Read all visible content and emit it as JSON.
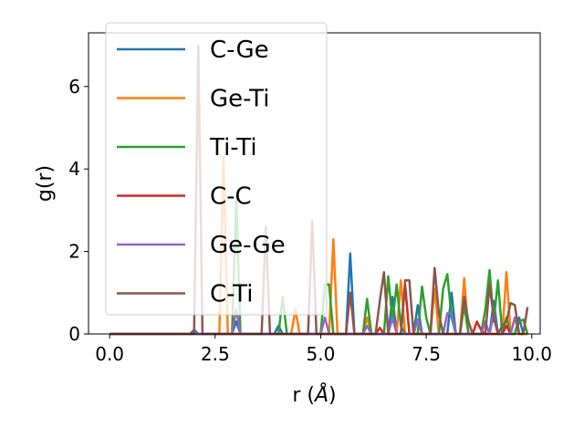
{
  "chart_data": {
    "type": "line",
    "title": "",
    "xlabel": "r (",
    "xlabel_unit": "Å",
    "xlabel_close": ")",
    "ylabel": "g(r)",
    "xlim": [
      -0.5,
      10.2
    ],
    "ylim": [
      0,
      7.3
    ],
    "xticks": [
      0.0,
      2.5,
      5.0,
      7.5,
      10.0
    ],
    "xtick_labels": [
      "0.0",
      "2.5",
      "5.0",
      "7.5",
      "10.0"
    ],
    "yticks": [
      0,
      2,
      4,
      6
    ],
    "ytick_labels": [
      "0",
      "2",
      "4",
      "6"
    ],
    "grid": false,
    "legend_position": "upper-left",
    "series": [
      {
        "name": "C-Ge",
        "color": "#1f77b4",
        "x": [
          0,
          1,
          1.9,
          2.0,
          2.1,
          2.2,
          2.9,
          3.0,
          3.1,
          3.9,
          4.0,
          4.1,
          5.5,
          5.6,
          5.7,
          5.8,
          6.6,
          6.7,
          6.8,
          7.2,
          7.3,
          7.4,
          8.0,
          8.1,
          8.2,
          9.0,
          9.1,
          9.2,
          9.6,
          9.7,
          9.8,
          9.9
        ],
        "y": [
          0,
          0,
          0,
          0.1,
          0,
          0,
          0,
          0.3,
          0,
          0,
          0.2,
          0,
          0,
          0,
          1.95,
          0,
          0,
          0.9,
          0,
          0,
          0.7,
          0,
          0,
          1.0,
          0,
          0,
          0.8,
          0,
          0,
          0.4,
          0,
          0
        ]
      },
      {
        "name": "Ge-Ti",
        "color": "#ff7f0e",
        "x": [
          0,
          2.6,
          2.7,
          2.8,
          2.9,
          3.0,
          4.3,
          4.4,
          4.5,
          5.2,
          5.3,
          5.4,
          6.0,
          6.1,
          6.2,
          6.8,
          6.9,
          7.0,
          7.6,
          7.7,
          7.8,
          8.3,
          8.4,
          8.5,
          9.3,
          9.4,
          9.5,
          9.8,
          9.9
        ],
        "y": [
          0,
          0,
          4.3,
          0,
          0,
          0,
          0,
          0.6,
          0,
          0,
          2.3,
          0,
          0,
          0.4,
          0,
          0,
          1.3,
          0,
          0,
          1.1,
          0,
          0,
          1.35,
          0,
          0,
          1.5,
          0,
          0,
          0
        ]
      },
      {
        "name": "Ti-Ti",
        "color": "#2ca02c",
        "x": [
          0,
          2.9,
          3.0,
          3.1,
          3.2,
          4.0,
          4.1,
          4.2,
          4.3,
          5.0,
          5.1,
          5.2,
          5.3,
          5.4,
          6.0,
          6.1,
          6.2,
          6.5,
          6.6,
          6.7,
          6.8,
          6.9,
          7.0,
          7.3,
          7.4,
          7.5,
          7.6,
          7.8,
          7.9,
          8.0,
          8.1,
          8.2,
          8.3,
          8.4,
          8.5,
          8.8,
          8.9,
          9.0,
          9.1,
          9.2,
          9.3,
          9.4,
          9.5,
          9.6,
          9.7,
          9.8,
          9.9
        ],
        "y": [
          0,
          0,
          3.3,
          0,
          0,
          0,
          0.9,
          0,
          0,
          0,
          1.2,
          1.2,
          0,
          0,
          0,
          0.85,
          0,
          0,
          1.4,
          0.3,
          1.2,
          0.2,
          0,
          0,
          1.15,
          0.4,
          0,
          0,
          1.1,
          1.45,
          0.4,
          0,
          0,
          0.7,
          0,
          0,
          0.6,
          1.55,
          0.3,
          1.3,
          0,
          0.4,
          0,
          0,
          0.3,
          0.35,
          0
        ]
      },
      {
        "name": "C-C",
        "color": "#d62728",
        "x": [
          0,
          6.3,
          6.4,
          6.5,
          6.6,
          6.9,
          7.0,
          7.1,
          7.2,
          8.6,
          8.7,
          8.8,
          8.9,
          9.3,
          9.4,
          9.5
        ],
        "y": [
          0,
          0,
          0.15,
          0,
          0,
          0,
          1.2,
          0,
          0,
          0,
          0.3,
          0.1,
          0,
          0,
          0.2,
          0
        ]
      },
      {
        "name": "Ge-Ge",
        "color": "#9467bd",
        "x": [
          0,
          2.9,
          3.0,
          3.1,
          3.2,
          5.0,
          5.1,
          5.2,
          6.0,
          6.1,
          6.2,
          6.6,
          6.7,
          6.8,
          7.2,
          7.3,
          7.4,
          7.9,
          8.0,
          8.1,
          8.2,
          8.3,
          8.8,
          8.9,
          9.0,
          9.1,
          9.2,
          9.5,
          9.6,
          9.7,
          9.8
        ],
        "y": [
          0,
          0,
          0.6,
          0,
          0,
          0,
          0.4,
          0,
          0,
          0.2,
          0,
          0,
          0.4,
          0,
          0,
          0.35,
          0,
          0,
          0.5,
          0.5,
          0,
          0,
          0,
          0.3,
          0,
          0.5,
          0,
          0,
          0.4,
          0,
          0
        ]
      },
      {
        "name": "C-Ti",
        "color": "#8c564b",
        "x": [
          0,
          1.9,
          2.0,
          2.1,
          2.2,
          2.3,
          3.6,
          3.7,
          3.8,
          3.9,
          4.7,
          4.8,
          4.9,
          5.0,
          5.6,
          5.7,
          5.8,
          6.3,
          6.4,
          6.5,
          6.6,
          6.9,
          7.0,
          7.1,
          7.2,
          7.6,
          7.7,
          7.8,
          7.9,
          8.0,
          8.3,
          8.4,
          8.5,
          8.6,
          8.9,
          9.0,
          9.1,
          9.2,
          9.3,
          9.4,
          9.5,
          9.6,
          9.7,
          9.8,
          9.9
        ],
        "y": [
          0,
          0,
          0,
          7.0,
          0,
          0,
          0,
          2.6,
          0,
          0,
          0,
          2.75,
          0,
          0,
          0,
          1.0,
          0,
          0,
          0.8,
          1.5,
          0,
          0,
          1.3,
          1.3,
          0,
          0,
          1.6,
          0.5,
          0,
          0,
          0,
          0.9,
          0.3,
          0,
          0,
          1.2,
          0.4,
          0,
          0.2,
          0.3,
          0.75,
          0.7,
          0,
          0,
          0.65
        ]
      }
    ]
  }
}
